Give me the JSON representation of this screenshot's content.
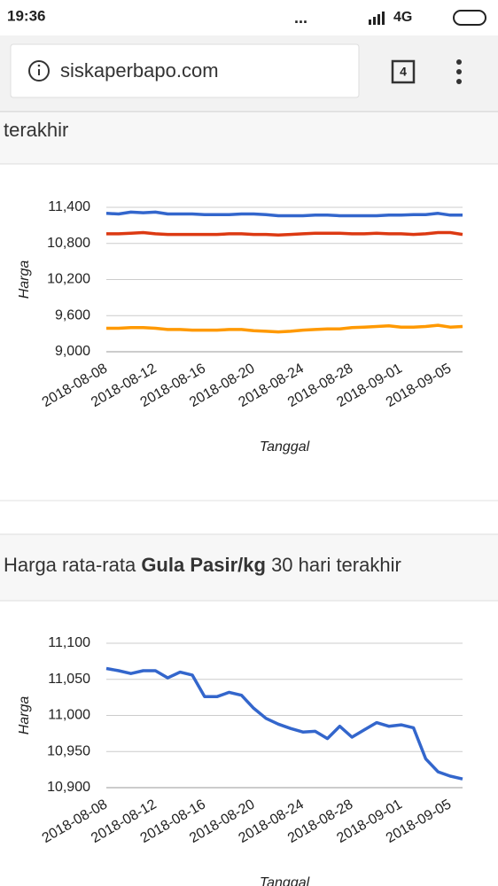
{
  "status_bar": {
    "time": "19:36",
    "network": "4G"
  },
  "browser": {
    "url": "siskaperbapo.com",
    "tab_count": "4"
  },
  "sections": [
    {
      "title_fragment": "terakhir"
    },
    {
      "title_parts": [
        "Harga rata-rata",
        "Gula Pasir/kg",
        "30 hari terakhir"
      ]
    }
  ],
  "chart_data": [
    {
      "type": "line",
      "categories": [
        "2018-08-08",
        null,
        null,
        null,
        "2018-08-12",
        null,
        null,
        null,
        "2018-08-16",
        null,
        null,
        null,
        "2018-08-20",
        null,
        null,
        null,
        "2018-08-24",
        null,
        null,
        null,
        "2018-08-28",
        null,
        null,
        null,
        "2018-09-01",
        null,
        null,
        null,
        "2018-09-05",
        null
      ],
      "x_label": "Tanggal",
      "y_label": "Harga",
      "ylim": [
        9000,
        11400
      ],
      "yticks": [
        {
          "value": 9000,
          "label": "9,000"
        },
        {
          "value": 9600,
          "label": "9,600"
        },
        {
          "value": 10200,
          "label": "10,200"
        },
        {
          "value": 10800,
          "label": "10,800"
        },
        {
          "value": 11400,
          "label": "11,400"
        }
      ],
      "grid": true,
      "series": [
        {
          "color": "#3366cc",
          "values": [
            11300,
            11290,
            11320,
            11310,
            11320,
            11290,
            11290,
            11290,
            11280,
            11280,
            11280,
            11290,
            11290,
            11280,
            11260,
            11260,
            11260,
            11270,
            11270,
            11260,
            11260,
            11260,
            11260,
            11270,
            11270,
            11280,
            11280,
            11300,
            11270,
            11270
          ]
        },
        {
          "color": "#dc3912",
          "values": [
            10960,
            10960,
            10970,
            10980,
            10960,
            10950,
            10950,
            10950,
            10950,
            10950,
            10960,
            10960,
            10950,
            10950,
            10940,
            10950,
            10960,
            10970,
            10970,
            10970,
            10960,
            10960,
            10970,
            10960,
            10960,
            10950,
            10960,
            10980,
            10980,
            10950
          ]
        },
        {
          "color": "#ff9900",
          "values": [
            9390,
            9390,
            9400,
            9400,
            9390,
            9370,
            9370,
            9360,
            9360,
            9360,
            9370,
            9370,
            9350,
            9340,
            9330,
            9340,
            9360,
            9370,
            9380,
            9380,
            9400,
            9410,
            9420,
            9430,
            9410,
            9410,
            9420,
            9440,
            9410,
            9420
          ]
        }
      ]
    },
    {
      "type": "line",
      "categories": [
        "2018-08-08",
        null,
        null,
        null,
        "2018-08-12",
        null,
        null,
        null,
        "2018-08-16",
        null,
        null,
        null,
        "2018-08-20",
        null,
        null,
        null,
        "2018-08-24",
        null,
        null,
        null,
        "2018-08-28",
        null,
        null,
        null,
        "2018-09-01",
        null,
        null,
        null,
        "2018-09-05",
        null
      ],
      "x_label": "Tanggal",
      "y_label": "Harga",
      "ylim": [
        10900,
        11100
      ],
      "yticks": [
        {
          "value": 10900,
          "label": "10,900"
        },
        {
          "value": 10950,
          "label": "10,950"
        },
        {
          "value": 11000,
          "label": "11,000"
        },
        {
          "value": 11050,
          "label": "11,050"
        },
        {
          "value": 11100,
          "label": "11,100"
        }
      ],
      "grid": true,
      "series": [
        {
          "color": "#3366cc",
          "values": [
            11065,
            11062,
            11058,
            11062,
            11062,
            11052,
            11060,
            11056,
            11026,
            11026,
            11032,
            11028,
            11010,
            10996,
            10988,
            10982,
            10977,
            10978,
            10968,
            10985,
            10970,
            10980,
            10990,
            10985,
            10987,
            10983,
            10940,
            10922,
            10916,
            10912
          ]
        }
      ]
    }
  ]
}
